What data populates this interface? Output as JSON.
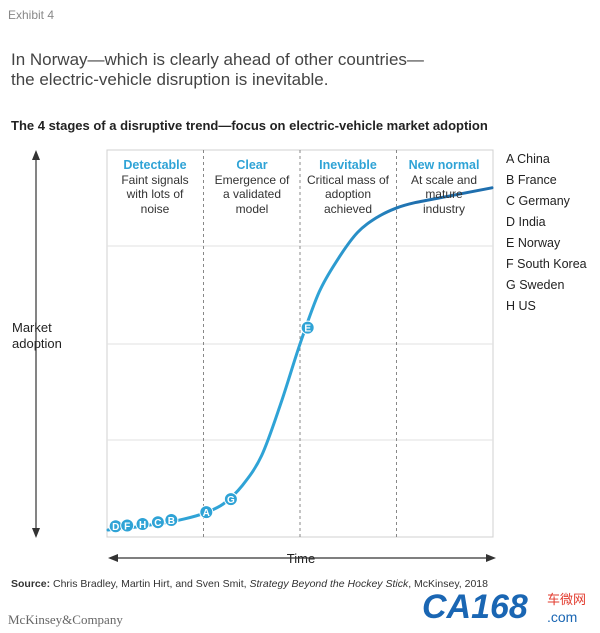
{
  "exhibit_label": "Exhibit 4",
  "headline": [
    "In Norway—which is clearly ahead of other countries—",
    "the electric-vehicle disruption is inevitable."
  ],
  "subtitle": "The 4 stages of a disruptive trend—focus on electric-vehicle market adoption",
  "source": {
    "prefix": "Source:",
    "authors": " Chris Bradley, Martin Hirt, and Sven Smit, ",
    "book": "Strategy Beyond the Hockey Stick",
    "suffix": ", McKinsey, 2018"
  },
  "brand": "McKinsey&Company",
  "watermark": {
    "logo_text": "CA168",
    "suffix": ".com",
    "side_text": "车微网",
    "color": "#1a66b3",
    "accent": "#e23b2e"
  },
  "chart_data": {
    "type": "line",
    "xlabel": "Time",
    "ylabel": [
      "Market",
      "adoption"
    ],
    "axes_arrows": true,
    "grid": "horizontal",
    "line_color": "#1f6fae",
    "accent_color": "#2fa3d6",
    "stages": [
      {
        "name": "Detectable",
        "description": "Faint signals\nwith lots of\nnoise"
      },
      {
        "name": "Clear",
        "description": "Emergence of\na validated\nmodel"
      },
      {
        "name": "Inevitable",
        "description": "Critical mass of\nadoption\nachieved"
      },
      {
        "name": "New normal",
        "description": "At scale and\nmature\nindustry"
      }
    ],
    "curve": [
      [
        0,
        0
      ],
      [
        0.05,
        0.005
      ],
      [
        0.1,
        0.012
      ],
      [
        0.15,
        0.02
      ],
      [
        0.2,
        0.03
      ],
      [
        0.25,
        0.045
      ],
      [
        0.3,
        0.07
      ],
      [
        0.35,
        0.12
      ],
      [
        0.4,
        0.2
      ],
      [
        0.45,
        0.34
      ],
      [
        0.5,
        0.5
      ],
      [
        0.55,
        0.64
      ],
      [
        0.6,
        0.73
      ],
      [
        0.65,
        0.8
      ],
      [
        0.7,
        0.84
      ],
      [
        0.75,
        0.865
      ],
      [
        0.8,
        0.88
      ],
      [
        0.9,
        0.9
      ],
      [
        1.0,
        0.92
      ]
    ],
    "points": [
      {
        "label": "D",
        "x": 0.02,
        "y": 0.01
      },
      {
        "label": "F",
        "x": 0.05,
        "y": 0.012
      },
      {
        "label": "H",
        "x": 0.09,
        "y": 0.016
      },
      {
        "label": "C",
        "x": 0.13,
        "y": 0.021
      },
      {
        "label": "B",
        "x": 0.165,
        "y": 0.027
      },
      {
        "label": "A",
        "x": 0.256,
        "y": 0.048
      },
      {
        "label": "G",
        "x": 0.32,
        "y": 0.083
      },
      {
        "label": "E",
        "x": 0.52,
        "y": 0.544
      }
    ],
    "legend": [
      {
        "code": "A",
        "country": "China"
      },
      {
        "code": "B",
        "country": "France"
      },
      {
        "code": "C",
        "country": "Germany"
      },
      {
        "code": "D",
        "country": "India"
      },
      {
        "code": "E",
        "country": "Norway"
      },
      {
        "code": "F",
        "country": "South Korea"
      },
      {
        "code": "G",
        "country": "Sweden"
      },
      {
        "code": "H",
        "country": "US"
      }
    ]
  }
}
